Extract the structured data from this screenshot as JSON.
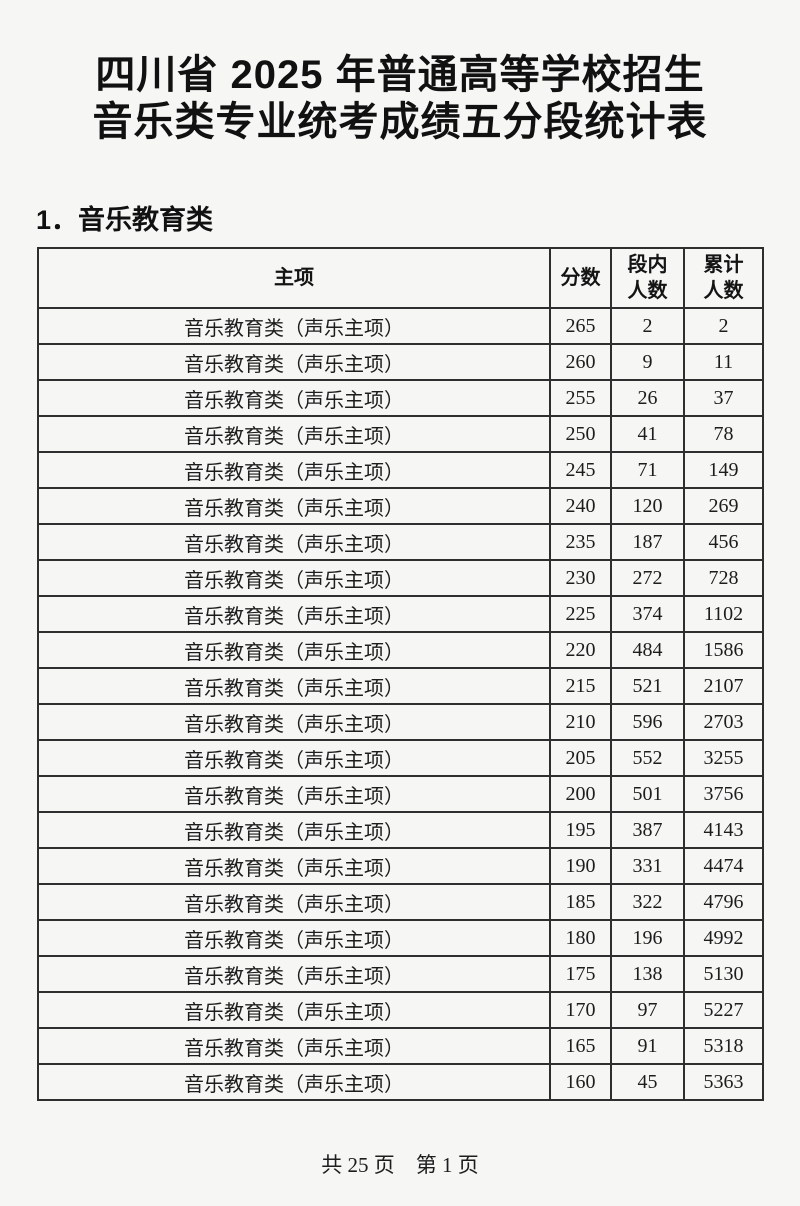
{
  "page": {
    "background_color": "#f6f6f4",
    "border_color": "#2e2e2e",
    "text_color": "#1d1d1d"
  },
  "title": {
    "line1": "四川省 2025 年普通高等学校招生",
    "line2": "音乐类专业统考成绩五分段统计表"
  },
  "section": {
    "heading": "1．音乐教育类"
  },
  "table": {
    "columns": [
      {
        "key": "major",
        "label": "主项"
      },
      {
        "key": "score",
        "label": "分数"
      },
      {
        "key": "segment_count",
        "label": "段内\n人数"
      },
      {
        "key": "cumulative_count",
        "label": "累计\n人数"
      }
    ],
    "rows": [
      {
        "major": "音乐教育类（声乐主项）",
        "score": "265",
        "segment_count": "2",
        "cumulative_count": "2"
      },
      {
        "major": "音乐教育类（声乐主项）",
        "score": "260",
        "segment_count": "9",
        "cumulative_count": "11"
      },
      {
        "major": "音乐教育类（声乐主项）",
        "score": "255",
        "segment_count": "26",
        "cumulative_count": "37"
      },
      {
        "major": "音乐教育类（声乐主项）",
        "score": "250",
        "segment_count": "41",
        "cumulative_count": "78"
      },
      {
        "major": "音乐教育类（声乐主项）",
        "score": "245",
        "segment_count": "71",
        "cumulative_count": "149"
      },
      {
        "major": "音乐教育类（声乐主项）",
        "score": "240",
        "segment_count": "120",
        "cumulative_count": "269"
      },
      {
        "major": "音乐教育类（声乐主项）",
        "score": "235",
        "segment_count": "187",
        "cumulative_count": "456"
      },
      {
        "major": "音乐教育类（声乐主项）",
        "score": "230",
        "segment_count": "272",
        "cumulative_count": "728"
      },
      {
        "major": "音乐教育类（声乐主项）",
        "score": "225",
        "segment_count": "374",
        "cumulative_count": "1102"
      },
      {
        "major": "音乐教育类（声乐主项）",
        "score": "220",
        "segment_count": "484",
        "cumulative_count": "1586"
      },
      {
        "major": "音乐教育类（声乐主项）",
        "score": "215",
        "segment_count": "521",
        "cumulative_count": "2107"
      },
      {
        "major": "音乐教育类（声乐主项）",
        "score": "210",
        "segment_count": "596",
        "cumulative_count": "2703"
      },
      {
        "major": "音乐教育类（声乐主项）",
        "score": "205",
        "segment_count": "552",
        "cumulative_count": "3255"
      },
      {
        "major": "音乐教育类（声乐主项）",
        "score": "200",
        "segment_count": "501",
        "cumulative_count": "3756"
      },
      {
        "major": "音乐教育类（声乐主项）",
        "score": "195",
        "segment_count": "387",
        "cumulative_count": "4143"
      },
      {
        "major": "音乐教育类（声乐主项）",
        "score": "190",
        "segment_count": "331",
        "cumulative_count": "4474"
      },
      {
        "major": "音乐教育类（声乐主项）",
        "score": "185",
        "segment_count": "322",
        "cumulative_count": "4796"
      },
      {
        "major": "音乐教育类（声乐主项）",
        "score": "180",
        "segment_count": "196",
        "cumulative_count": "4992"
      },
      {
        "major": "音乐教育类（声乐主项）",
        "score": "175",
        "segment_count": "138",
        "cumulative_count": "5130"
      },
      {
        "major": "音乐教育类（声乐主项）",
        "score": "170",
        "segment_count": "97",
        "cumulative_count": "5227"
      },
      {
        "major": "音乐教育类（声乐主项）",
        "score": "165",
        "segment_count": "91",
        "cumulative_count": "5318"
      },
      {
        "major": "音乐教育类（声乐主项）",
        "score": "160",
        "segment_count": "45",
        "cumulative_count": "5363"
      }
    ]
  },
  "footer": {
    "text": "共 25 页　第 1 页"
  }
}
